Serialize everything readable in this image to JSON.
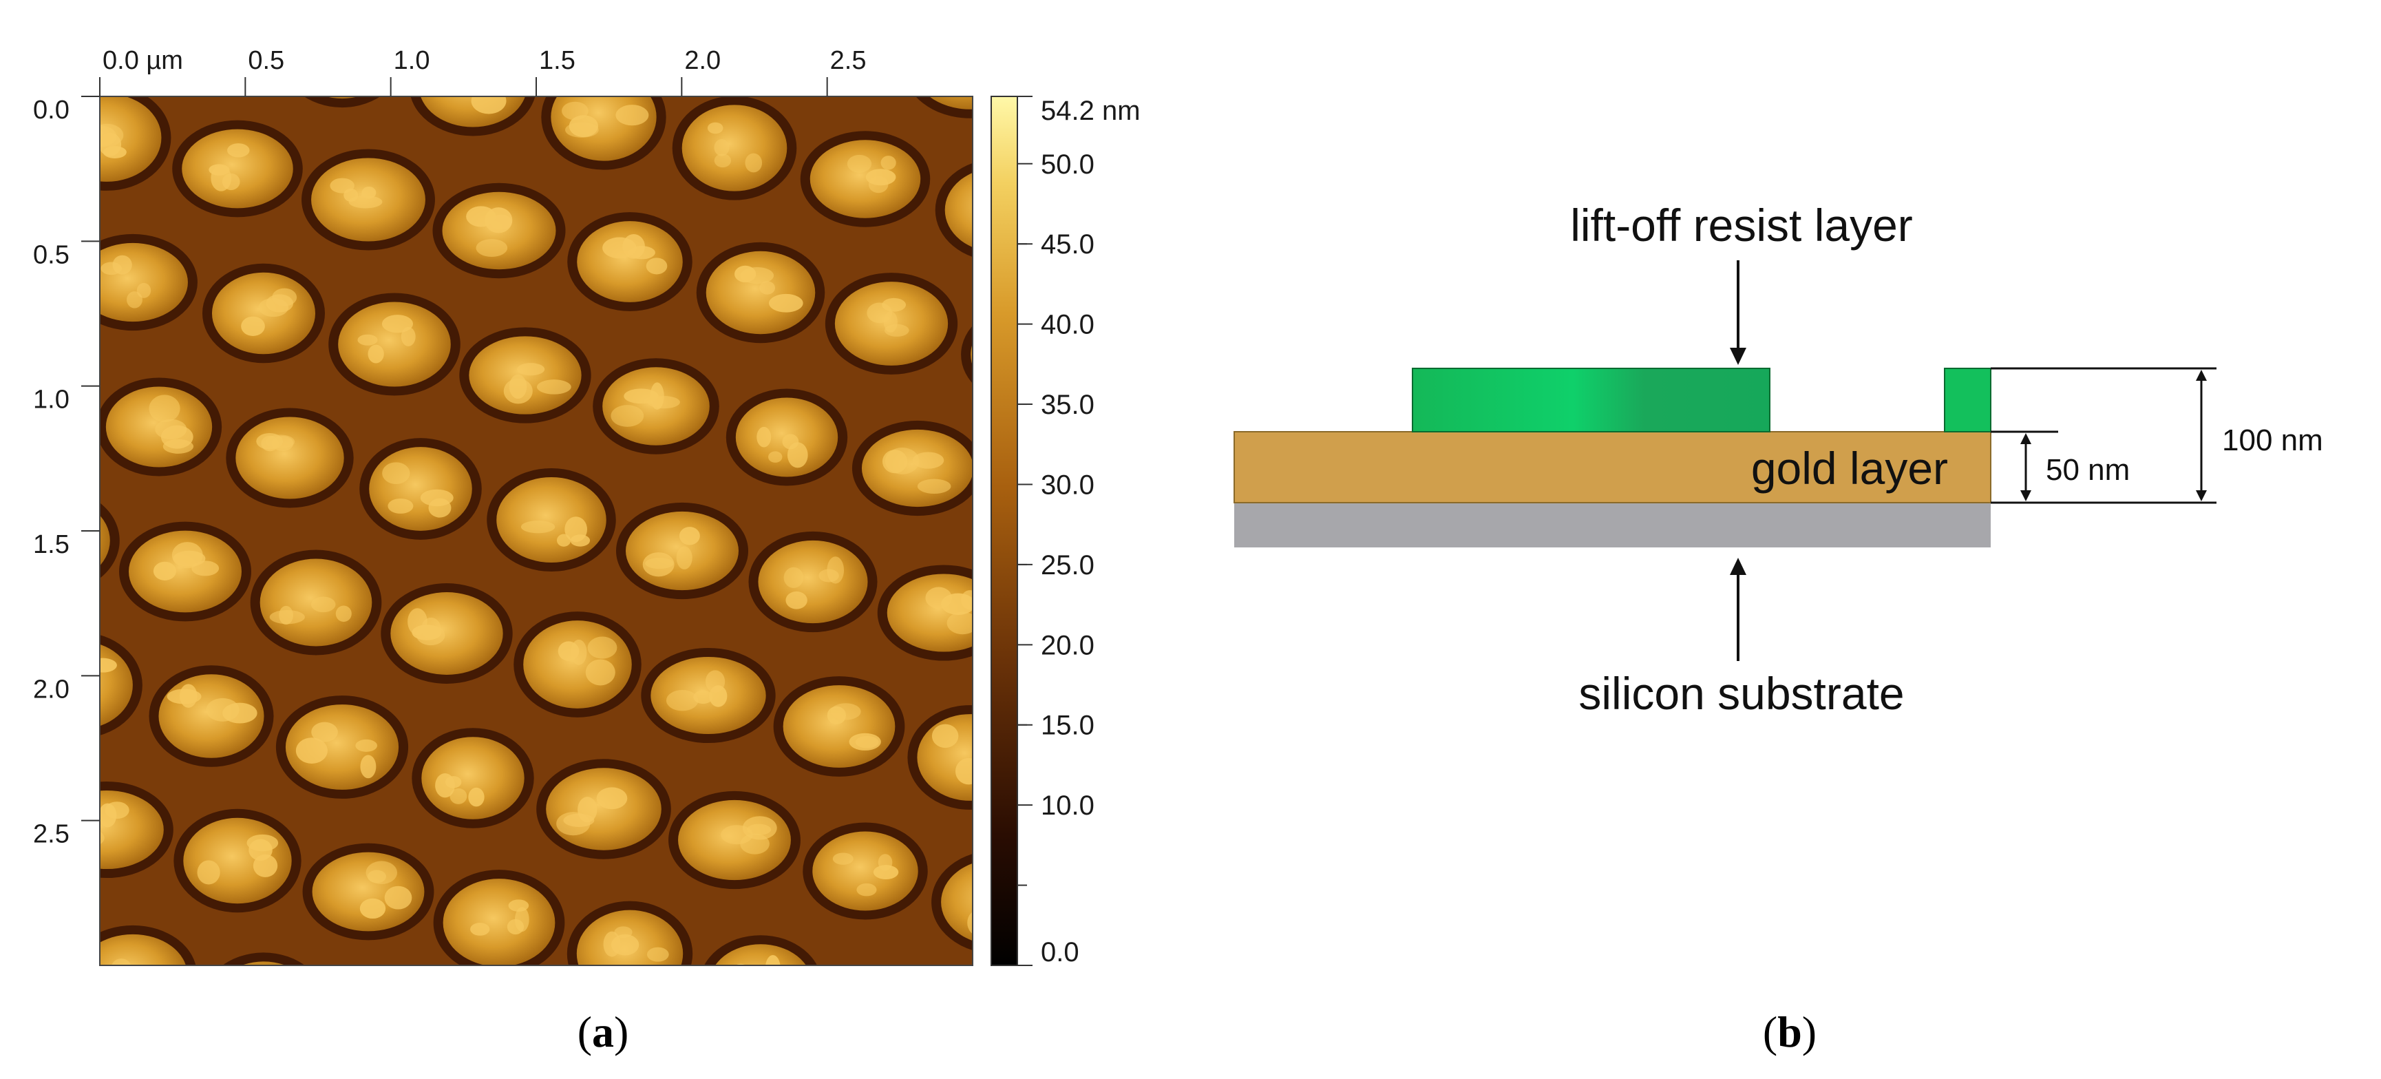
{
  "figure": {
    "panel_a": {
      "caption_open": "(",
      "caption_letter": "a",
      "caption_close": ")",
      "x_ticks": [
        "0.0 µm",
        "0.5",
        "1.0",
        "1.5",
        "2.0",
        "2.5"
      ],
      "y_ticks": [
        "0.0",
        "0.5",
        "1.0",
        "1.5",
        "2.0",
        "2.5"
      ],
      "scan_size_um": 3.0,
      "colorbar": {
        "labels": [
          "54.2 nm",
          "50.0",
          "45.0",
          "40.0",
          "35.0",
          "30.0",
          "25.0",
          "20.0",
          "15.0",
          "10.0",
          "0.0"
        ],
        "max_nm": 54.2,
        "min_nm": 0.0
      },
      "colors": {
        "background": "#7a3c0a",
        "rim": "#3a1404",
        "island": "#d08a1e",
        "highlight": "#f6c860"
      }
    },
    "panel_b": {
      "caption_open": "(",
      "caption_letter": "b",
      "caption_close": ")",
      "resist_label": "lift-off resist layer",
      "gold_label": "gold layer",
      "substrate_label": "silicon substrate",
      "dim_gold": "50 nm",
      "dim_total": "100 nm",
      "colors": {
        "resist": "#12b95a",
        "gold": "#d09f4c",
        "substrate": "#a7a7ab"
      }
    }
  }
}
